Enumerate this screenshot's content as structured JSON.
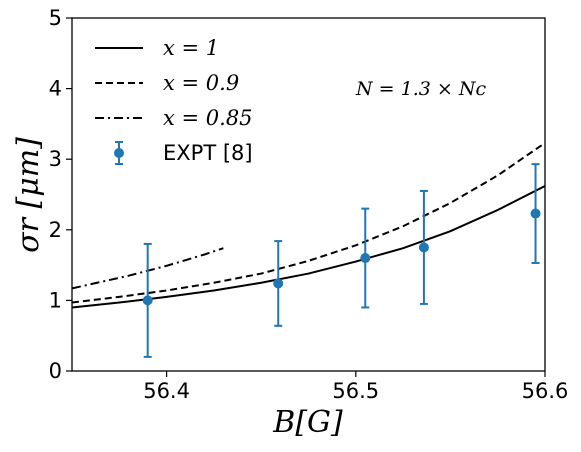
{
  "chart_data": {
    "type": "line",
    "title": "",
    "xlabel": "B[G]",
    "ylabel": "σr [μm]",
    "xlim": [
      56.35,
      56.6
    ],
    "ylim": [
      0,
      5
    ],
    "xticks": [
      56.4,
      56.5,
      56.6
    ],
    "yticks": [
      0,
      1,
      2,
      3,
      4,
      5
    ],
    "xtick_labels": [
      "56.4",
      "56.5",
      "56.6"
    ],
    "ytick_labels": [
      "0",
      "1",
      "2",
      "3",
      "4",
      "5"
    ],
    "grid": false,
    "legend_position": "top-left",
    "annotation": "N = 1.3 × Nc",
    "series": [
      {
        "name": "x = 1",
        "style": "solid",
        "color": "#000000",
        "x": [
          56.35,
          56.375,
          56.4,
          56.425,
          56.45,
          56.475,
          56.5,
          56.525,
          56.55,
          56.575,
          56.6
        ],
        "y": [
          0.9,
          0.97,
          1.05,
          1.14,
          1.25,
          1.38,
          1.55,
          1.74,
          1.98,
          2.28,
          2.62
        ]
      },
      {
        "name": "x = 0.9",
        "style": "dashed",
        "color": "#000000",
        "x": [
          56.35,
          56.375,
          56.4,
          56.425,
          56.45,
          56.475,
          56.5,
          56.525,
          56.55,
          56.575,
          56.6
        ],
        "y": [
          0.97,
          1.05,
          1.14,
          1.25,
          1.38,
          1.56,
          1.78,
          2.05,
          2.38,
          2.77,
          3.23
        ]
      },
      {
        "name": "x = 0.85",
        "style": "dashdot",
        "color": "#000000",
        "x": [
          56.35,
          56.36,
          56.37,
          56.38,
          56.39,
          56.4,
          56.41,
          56.42,
          56.43
        ],
        "y": [
          1.17,
          1.23,
          1.29,
          1.35,
          1.42,
          1.49,
          1.57,
          1.65,
          1.74
        ]
      },
      {
        "name": "EXPT [8]",
        "style": "errorbar",
        "color": "#1f77b4",
        "x": [
          56.39,
          56.459,
          56.505,
          56.536,
          56.595
        ],
        "y": [
          1.0,
          1.24,
          1.6,
          1.75,
          2.23
        ],
        "yerr": [
          0.8,
          0.6,
          0.7,
          0.8,
          0.7
        ]
      }
    ]
  }
}
